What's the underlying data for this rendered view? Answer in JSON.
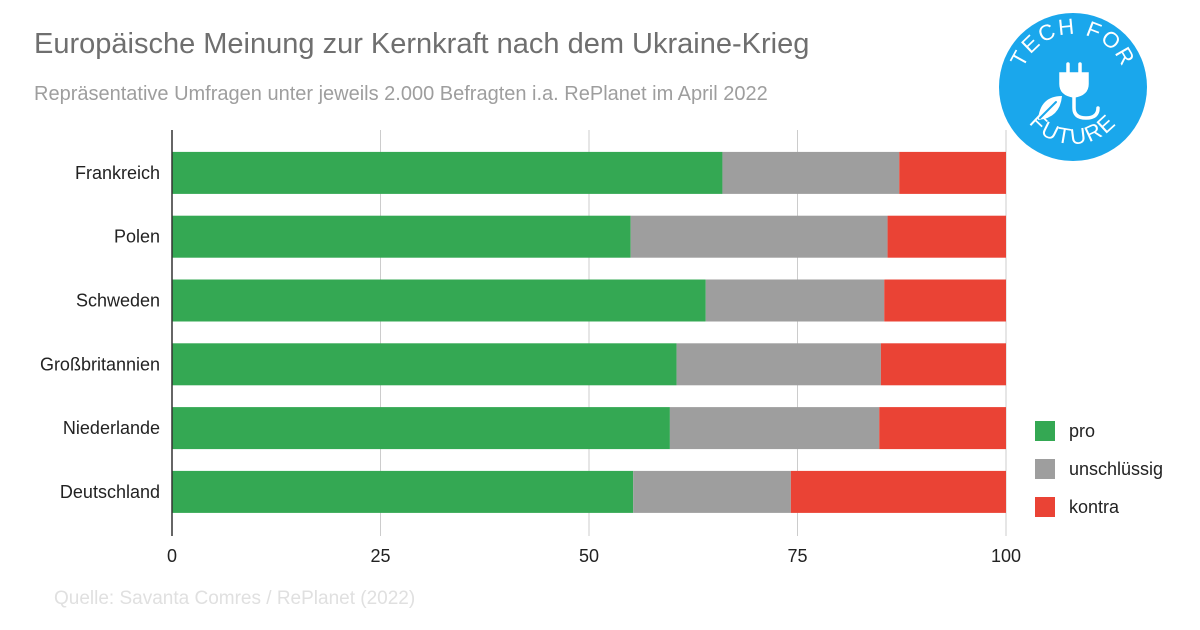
{
  "header": {
    "title": "Europäische Meinung zur Kernkraft nach dem Ukraine-Krieg",
    "subtitle": "Repräsentative Umfragen unter jeweils 2.000 Befragten i.a. RePlanet im April 2022"
  },
  "footer": {
    "source": "Quelle:  Savanta Comres / RePlanet (2022)"
  },
  "logo": {
    "icon": "plug-leaf-icon",
    "line1": "TECH FOR",
    "line2": "FUTURE",
    "color": "#1aa7ec"
  },
  "chart_data": {
    "type": "bar",
    "orientation": "horizontal",
    "stacked": true,
    "title": "Europäische Meinung zur Kernkraft nach dem Ukraine-Krieg",
    "subtitle": "Repräsentative Umfragen unter jeweils 2.000 Befragten i.a. RePlanet im April 2022",
    "xlabel": "",
    "ylabel": "",
    "categories": [
      "Frankreich",
      "Polen",
      "Schweden",
      "Großbritannien",
      "Niederlande",
      "Deutschland"
    ],
    "series": [
      {
        "name": "pro",
        "color": "#34a853",
        "values": [
          66,
          55,
          64,
          60.5,
          59.7,
          55.3
        ]
      },
      {
        "name": "unschlüssig",
        "color": "#9e9e9e",
        "values": [
          21.2,
          30.8,
          21.4,
          24.5,
          25.1,
          18.9
        ]
      },
      {
        "name": "kontra",
        "color": "#ea4335",
        "values": [
          12.8,
          14.2,
          14.6,
          15,
          15.2,
          25.8
        ]
      }
    ],
    "xlim": [
      0,
      100
    ],
    "xticks": [
      0,
      25,
      50,
      75,
      100
    ],
    "grid": true,
    "legend_position": "bottom-right"
  }
}
